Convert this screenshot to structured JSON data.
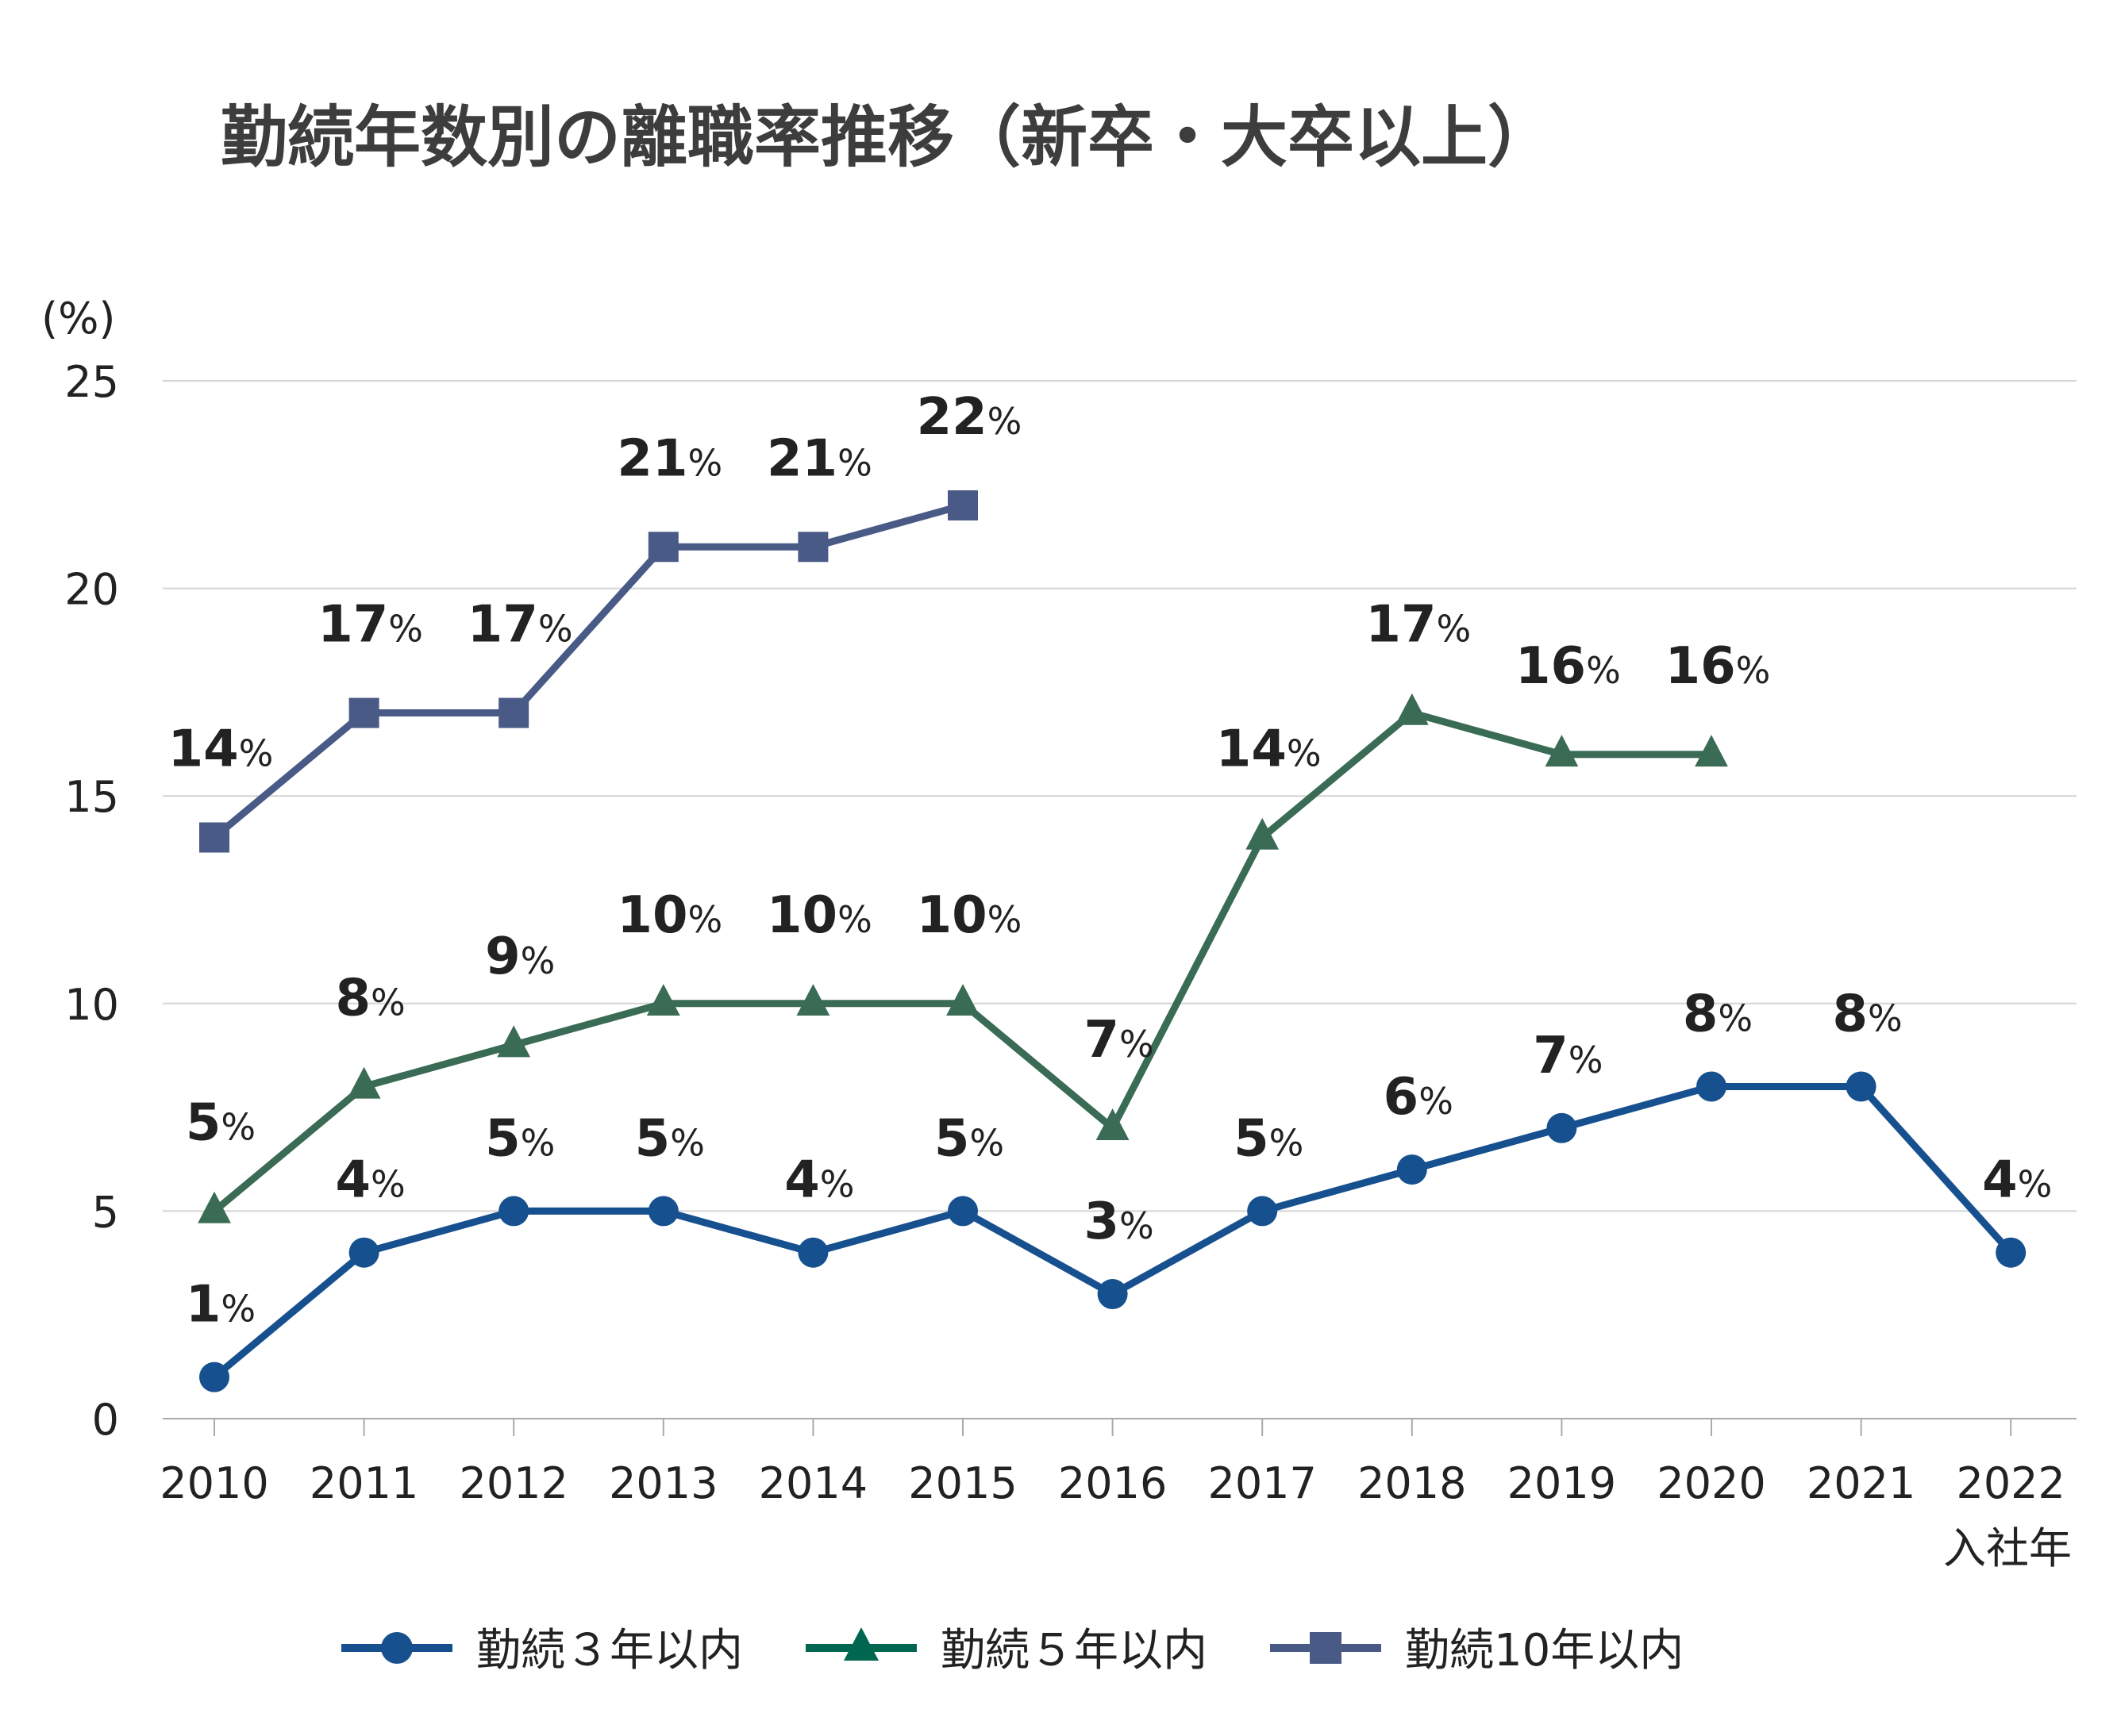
{
  "chart_data": {
    "type": "line",
    "title": "勤続年数別の離職率推移（新卒・大卒以上）",
    "ylabel": "(%)",
    "xlabel": "入社年",
    "ylim": [
      0,
      25
    ],
    "yticks": [
      0,
      5,
      10,
      15,
      20,
      25
    ],
    "grid": true,
    "legend_position": "bottom",
    "categories": [
      "2010",
      "2011",
      "2012",
      "2013",
      "2014",
      "2015",
      "2016",
      "2017",
      "2018",
      "2019",
      "2020",
      "2021",
      "2022"
    ],
    "series": [
      {
        "name": "勤続３年以内",
        "marker": "circle",
        "color": "#17508f",
        "values": [
          1,
          4,
          5,
          5,
          4,
          5,
          3,
          5,
          6,
          7,
          8,
          8,
          4
        ]
      },
      {
        "name": "勤続５年以内",
        "marker": "triangle",
        "color": "#3a6b55",
        "legend_color": "#006650",
        "values": [
          5,
          8,
          9,
          10,
          10,
          10,
          7,
          14,
          17,
          16,
          16,
          null,
          null
        ]
      },
      {
        "name": "勤続10年以内",
        "marker": "square",
        "color": "#485a85",
        "values": [
          14,
          17,
          17,
          21,
          21,
          22,
          null,
          null,
          null,
          null,
          null,
          null,
          null
        ]
      }
    ],
    "value_suffix": "%"
  }
}
